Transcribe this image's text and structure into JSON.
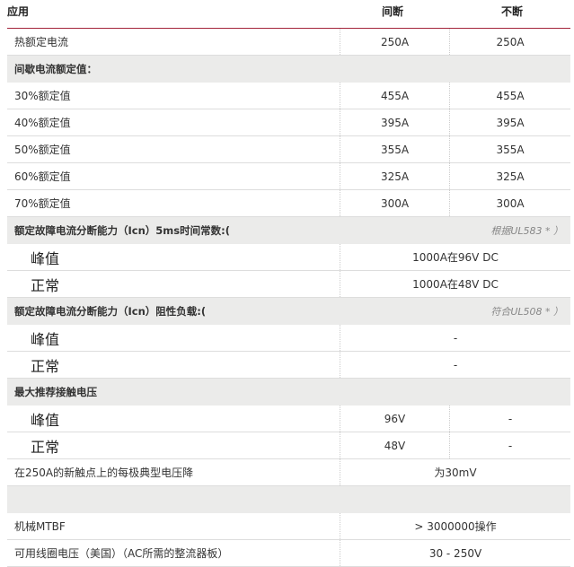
{
  "header": {
    "col0": "应用",
    "col1": "间断",
    "col2": "不断"
  },
  "rows": [
    {
      "type": "row",
      "label": "热额定电流",
      "c1": "250A",
      "c2": "250A"
    },
    {
      "type": "section",
      "label": "间歇电流额定值：",
      "note": ""
    },
    {
      "type": "row",
      "label": "30%额定值",
      "c1": "455A",
      "c2": "455A"
    },
    {
      "type": "row",
      "label": "40%额定值",
      "c1": "395A",
      "c2": "395A"
    },
    {
      "type": "row",
      "label": "50%额定值",
      "c1": "355A",
      "c2": "355A"
    },
    {
      "type": "row",
      "label": "60%额定值",
      "c1": "325A",
      "c2": "325A"
    },
    {
      "type": "row",
      "label": "70%额定值",
      "c1": "300A",
      "c2": "300A"
    },
    {
      "type": "section",
      "label": "额定故障电流分断能力（Icn）5ms时间常数:(",
      "note": "根据UL583 * ）"
    },
    {
      "type": "span",
      "big": true,
      "label": "峰值",
      "value": "1000A在96V DC"
    },
    {
      "type": "span",
      "big": true,
      "label": "正常",
      "value": "1000A在48V DC"
    },
    {
      "type": "section",
      "label": "额定故障电流分断能力（Icn）阻性负载:(",
      "note": "符合UL508 * ）"
    },
    {
      "type": "span",
      "big": true,
      "label": "峰值",
      "value": "-"
    },
    {
      "type": "span",
      "big": true,
      "label": "正常",
      "value": "-"
    },
    {
      "type": "section",
      "label": "最大推荐接触电压",
      "note": ""
    },
    {
      "type": "row",
      "big": true,
      "label": "峰值",
      "c1": "96V",
      "c2": "-"
    },
    {
      "type": "row",
      "big": true,
      "label": "正常",
      "c1": "48V",
      "c2": "-"
    },
    {
      "type": "span",
      "label": "在250A的新触点上的每极典型电压降",
      "value": "为30mV"
    },
    {
      "type": "section",
      "label": "",
      "note": ""
    },
    {
      "type": "span",
      "label": "机械MTBF",
      "value": "> 3000000操作"
    },
    {
      "type": "span",
      "label": "可用线圈电压（美国）（AC所需的整流器板）",
      "value": "30 - 250V"
    }
  ]
}
